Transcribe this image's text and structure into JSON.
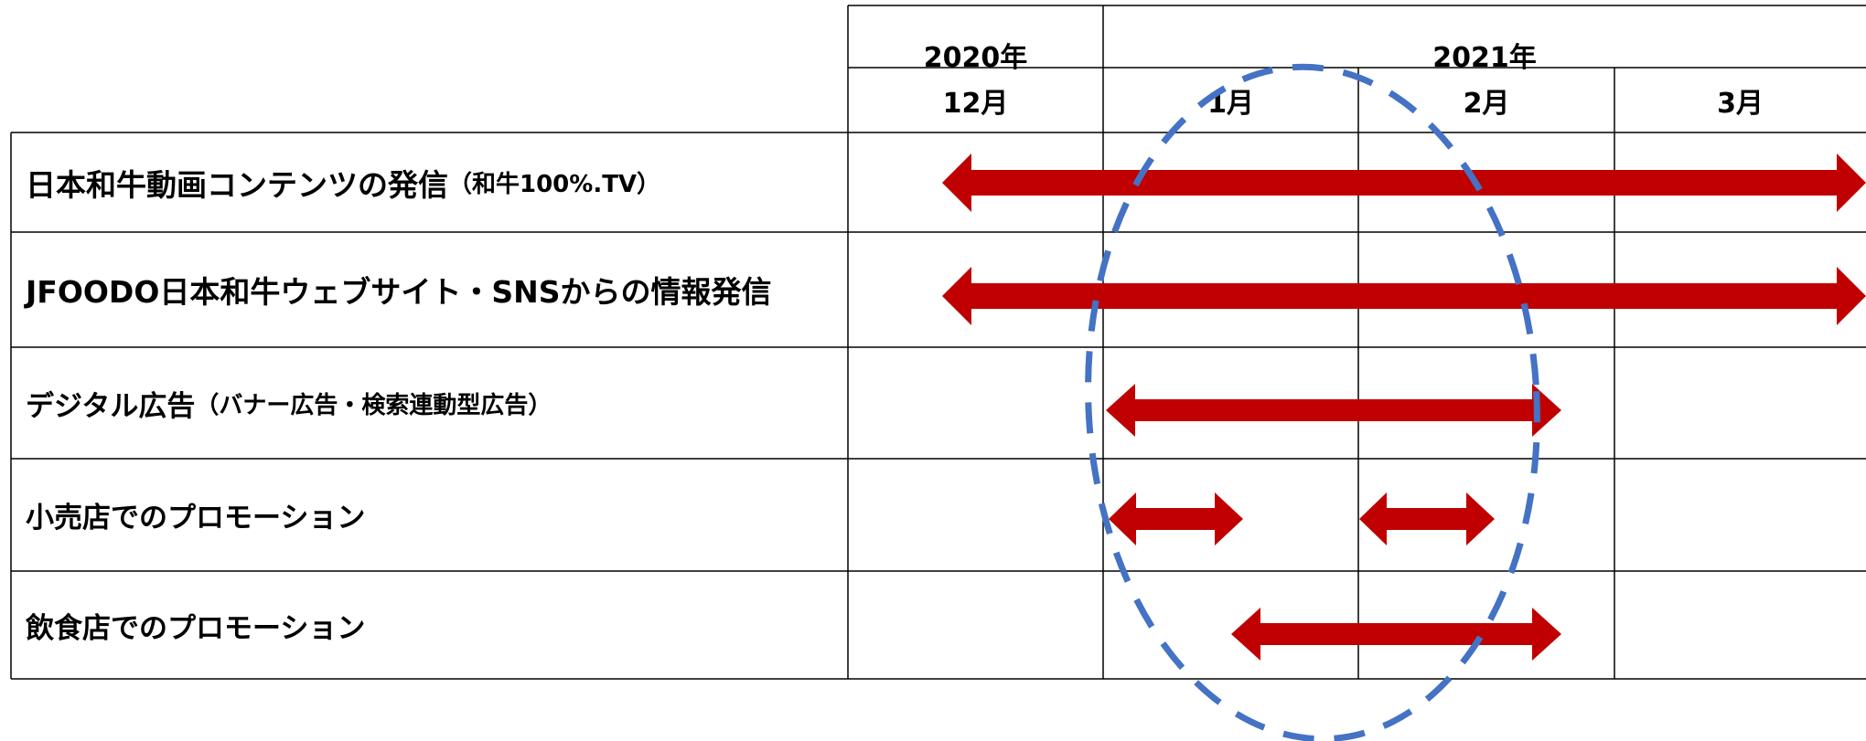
{
  "header": {
    "years": [
      {
        "label": "2020年"
      },
      {
        "label": "2021年"
      }
    ],
    "months": [
      {
        "label": "12月"
      },
      {
        "label": "1月"
      },
      {
        "label": "2月"
      },
      {
        "label": "3月"
      }
    ]
  },
  "tasks": [
    {
      "main": "日本和牛動画コンテンツの発信",
      "sub": "（和牛100%.TV）",
      "span": [
        "12月",
        "3月"
      ]
    },
    {
      "main": "JFOODO日本和牛ウェブサイト・SNSからの情報発信",
      "sub": "",
      "span": [
        "12月",
        "3月"
      ]
    },
    {
      "main": "デジタル広告",
      "sub": " （バナー広告・検索連動型広告）",
      "span": [
        "1月",
        "2月"
      ]
    },
    {
      "main": "小売店でのプロモーション",
      "sub": "",
      "span": [
        "1月",
        "1月",
        "2月",
        "2月"
      ]
    },
    {
      "main": "飲食店でのプロモーション",
      "sub": "",
      "span": [
        "1月",
        "2月"
      ]
    }
  ],
  "colors": {
    "arrow": "#c00000",
    "highlight": "#4472c4",
    "grid": "#000000"
  }
}
